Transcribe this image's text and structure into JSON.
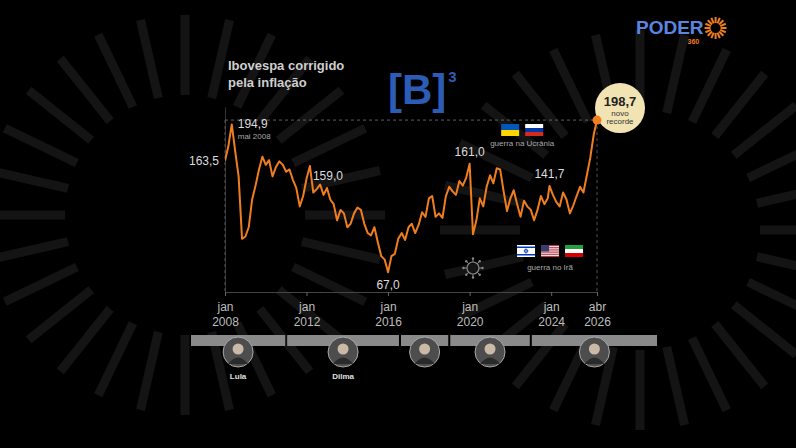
{
  "chart_data": {
    "type": "line",
    "title": "Ibovespa corrigido pela inflação",
    "color": "#f07d1e",
    "grid": false,
    "tick_labels": "x",
    "xlim": [
      "2008-01",
      "2026-04"
    ],
    "xticks": [
      {
        "value": "2008-01",
        "label": "jan 2008"
      },
      {
        "value": "2012-01",
        "label": "jan 2012"
      },
      {
        "value": "2016-01",
        "label": "jan 2016"
      },
      {
        "value": "2020-01",
        "label": "jan 2020"
      },
      {
        "value": "2024-01",
        "label": "jan 2024"
      },
      {
        "value": "2026-04",
        "label": "abr 2026"
      }
    ],
    "ylim": [
      50,
      210
    ],
    "yticks": [],
    "x": [
      "2008-01",
      "2008-03",
      "2008-05",
      "2008-07",
      "2008-09",
      "2008-11",
      "2009-01",
      "2009-03",
      "2009-05",
      "2009-07",
      "2009-09",
      "2009-11",
      "2010-01",
      "2010-03",
      "2010-05",
      "2010-07",
      "2010-09",
      "2010-11",
      "2011-01",
      "2011-03",
      "2011-05",
      "2011-07",
      "2011-09",
      "2011-11",
      "2012-01",
      "2012-03",
      "2012-05",
      "2012-07",
      "2012-09",
      "2012-11",
      "2013-01",
      "2013-03",
      "2013-05",
      "2013-07",
      "2013-09",
      "2013-11",
      "2014-01",
      "2014-03",
      "2014-05",
      "2014-07",
      "2014-09",
      "2014-11",
      "2015-01",
      "2015-03",
      "2015-05",
      "2015-07",
      "2015-09",
      "2015-11",
      "2016-01",
      "2016-03",
      "2016-05",
      "2016-07",
      "2016-09",
      "2016-11",
      "2017-01",
      "2017-03",
      "2017-05",
      "2017-07",
      "2017-09",
      "2017-11",
      "2018-01",
      "2018-03",
      "2018-05",
      "2018-07",
      "2018-09",
      "2018-11",
      "2019-01",
      "2019-03",
      "2019-05",
      "2019-07",
      "2019-09",
      "2019-11",
      "2020-01",
      "2020-03",
      "2020-05",
      "2020-07",
      "2020-09",
      "2020-11",
      "2021-01",
      "2021-03",
      "2021-05",
      "2021-07",
      "2021-09",
      "2021-11",
      "2022-01",
      "2022-03",
      "2022-05",
      "2022-07",
      "2022-09",
      "2022-11",
      "2023-01",
      "2023-03",
      "2023-05",
      "2023-07",
      "2023-09",
      "2023-11",
      "2023-12",
      "2024-02",
      "2024-04",
      "2024-06",
      "2024-08",
      "2024-10",
      "2024-12",
      "2025-02",
      "2025-04",
      "2025-06",
      "2025-08",
      "2025-10",
      "2025-12",
      "2026-02",
      "2026-04"
    ],
    "values": [
      163.5,
      176,
      194.9,
      172,
      150,
      96,
      98,
      106,
      130,
      142,
      156,
      167,
      160,
      164,
      150,
      158,
      163,
      160,
      154,
      156,
      147,
      140,
      124,
      133,
      148,
      159.0,
      136,
      139,
      143,
      134,
      140,
      130,
      126,
      112,
      121,
      118,
      106,
      109,
      118,
      123,
      121,
      109,
      101,
      99,
      106,
      93,
      81,
      78,
      67.0,
      81,
      83,
      96,
      101,
      95,
      106,
      109,
      101,
      108,
      119,
      115,
      131,
      133,
      115,
      118,
      114,
      133,
      141,
      137,
      134,
      146,
      142,
      149,
      161.0,
      100,
      112,
      131,
      124,
      141,
      151,
      144,
      157,
      156,
      137,
      120,
      131,
      138,
      126,
      115,
      129,
      124,
      121,
      112,
      121,
      133,
      126,
      131,
      141.7,
      134,
      128,
      124,
      136,
      130,
      118,
      125,
      133,
      141,
      136,
      151,
      166,
      186,
      198.7
    ],
    "annotations": [
      {
        "x": "2008-01",
        "value": 163.5,
        "label": "163,5"
      },
      {
        "x": "2008-05",
        "value": 194.9,
        "label": "194,9",
        "note": "mai 2008"
      },
      {
        "x": "2012-03",
        "value": 159.0,
        "label": "159,0"
      },
      {
        "x": "2016-01",
        "value": 67.0,
        "label": "67,0"
      },
      {
        "x": "2020-01",
        "value": 161.0,
        "label": "161,0"
      },
      {
        "x": "2023-12",
        "value": 141.7,
        "label": "141,7"
      },
      {
        "x": "2026-04",
        "value": 198.7,
        "label": "198,7",
        "note": "novo recorde"
      }
    ],
    "events": [
      {
        "x": "2022-02",
        "label": "guerra na Ucrânia"
      },
      {
        "x": "2025-06",
        "label": "guerra no Irã"
      },
      {
        "x": "2020-03"
      }
    ],
    "presidents": [
      {
        "name": "Lula",
        "start": "2003-01"
      },
      {
        "name": "Dilma",
        "start": "2011-01"
      },
      {
        "start": "2016-08"
      },
      {
        "start": "2019-01"
      },
      {
        "start": "2023-01"
      }
    ],
    "source_logo": {
      "text": "[B]",
      "superscript": "3"
    },
    "brand_logo": {
      "text": "PODER",
      "suffix": "360"
    }
  }
}
